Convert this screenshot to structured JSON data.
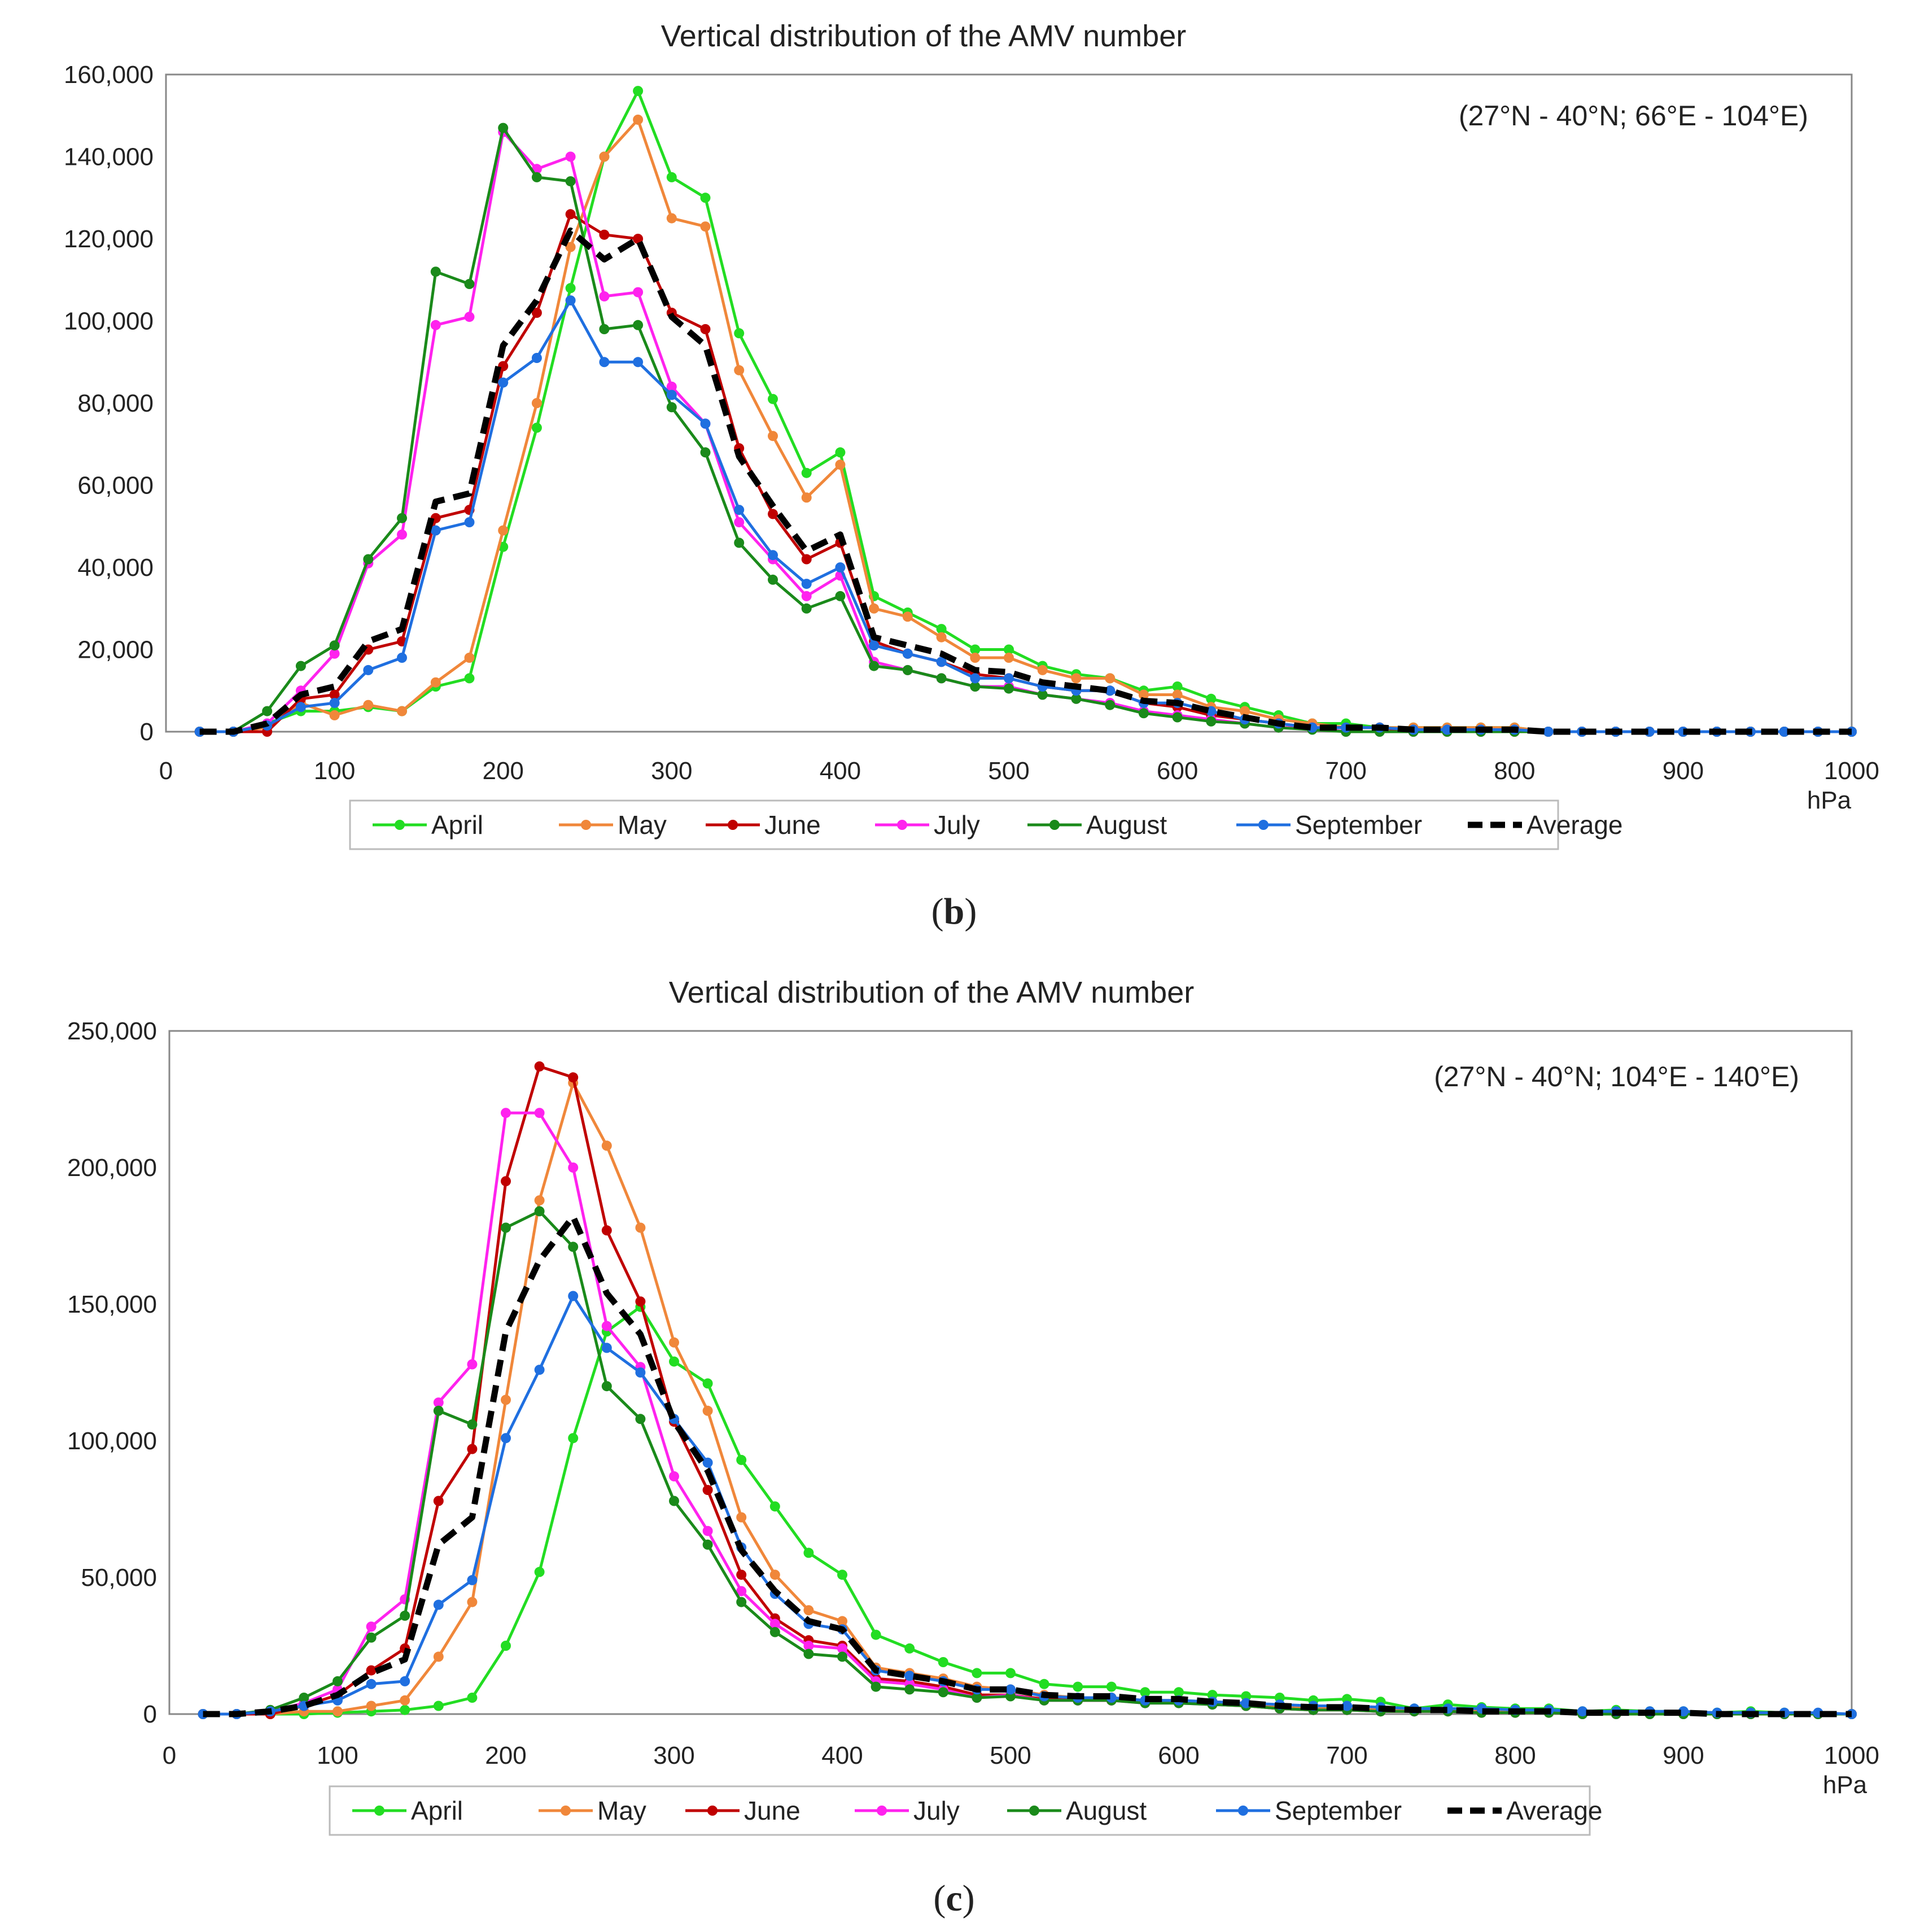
{
  "panels": [
    {
      "title": "Vertical distribution of the AMV number",
      "annotation": "(27°N - 40°N; 66°E - 104°E)",
      "label": "b"
    },
    {
      "title": "Vertical distribution of the AMV number",
      "annotation": "(27°N - 40°N; 104°E - 140°E)",
      "label": "c"
    }
  ],
  "colors": {
    "April": "#22dd22",
    "May": "#f0873a",
    "June": "#c00000",
    "July": "#ff22ee",
    "August": "#1a8a1a",
    "September": "#1f6fe0",
    "Average": "#000000"
  },
  "chart_data": [
    {
      "type": "line",
      "title": "Vertical distribution of the AMV number",
      "xlabel": "hPa",
      "ylabel": "",
      "xlim": [
        0,
        1000
      ],
      "ylim": [
        0,
        160000
      ],
      "x_ticks": [
        "0",
        "100",
        "200",
        "300",
        "400",
        "500",
        "600",
        "700",
        "800",
        "900",
        "1000"
      ],
      "y_ticks": [
        "0",
        "20,000",
        "40,000",
        "60,000",
        "80,000",
        "100,000",
        "120,000",
        "140,000",
        "160,000"
      ],
      "legend": [
        "April",
        "May",
        "June",
        "July",
        "August",
        "September",
        "Average"
      ],
      "legend_position": "bottom",
      "grid": false,
      "x": [
        20,
        40,
        60,
        80,
        100,
        120,
        140,
        160,
        180,
        200,
        220,
        240,
        260,
        280,
        300,
        320,
        340,
        360,
        380,
        400,
        420,
        440,
        460,
        480,
        500,
        520,
        540,
        560,
        580,
        600,
        620,
        640,
        660,
        680,
        700,
        720,
        740,
        760,
        780,
        800,
        820,
        840,
        860,
        880,
        900,
        920,
        940,
        960,
        980,
        1000
      ],
      "series": [
        {
          "name": "April",
          "values": [
            0,
            0,
            2000,
            5000,
            5000,
            6000,
            5000,
            11000,
            13000,
            45000,
            74000,
            108000,
            140000,
            156000,
            135000,
            130000,
            97000,
            81000,
            63000,
            68000,
            33000,
            29000,
            25000,
            20000,
            20000,
            16000,
            14000,
            13000,
            10000,
            11000,
            8000,
            6000,
            4000,
            2000,
            2000,
            1000,
            1000,
            1000,
            1000,
            1000,
            0,
            0,
            0,
            0,
            0,
            0,
            0,
            0,
            0,
            0
          ]
        },
        {
          "name": "May",
          "values": [
            0,
            0,
            1000,
            7000,
            4000,
            6500,
            5000,
            12000,
            18000,
            49000,
            80000,
            118000,
            140000,
            149000,
            125000,
            123000,
            88000,
            72000,
            57000,
            65000,
            30000,
            28000,
            23000,
            18000,
            18000,
            15000,
            13000,
            13000,
            9000,
            9000,
            6000,
            5000,
            3000,
            2000,
            1000,
            1000,
            1000,
            1000,
            1000,
            1000,
            0,
            0,
            0,
            0,
            0,
            0,
            0,
            0,
            0,
            0
          ]
        },
        {
          "name": "June",
          "values": [
            0,
            0,
            0,
            8000,
            9000,
            20000,
            22000,
            52000,
            54000,
            89000,
            102000,
            126000,
            121000,
            120000,
            102000,
            98000,
            69000,
            53000,
            42000,
            46000,
            22000,
            19000,
            17000,
            14000,
            13000,
            11000,
            10000,
            10000,
            7000,
            6000,
            4000,
            3000,
            2000,
            1000,
            1000,
            1000,
            0,
            0,
            0,
            0,
            0,
            0,
            0,
            0,
            0,
            0,
            0,
            0,
            0,
            0
          ]
        },
        {
          "name": "July",
          "values": [
            0,
            0,
            2000,
            10000,
            19000,
            41000,
            48000,
            99000,
            101000,
            146000,
            137000,
            140000,
            106000,
            107000,
            84000,
            75000,
            51000,
            42000,
            33000,
            38000,
            17000,
            15000,
            13000,
            11000,
            11000,
            9000,
            8000,
            7000,
            5000,
            4000,
            3000,
            2000,
            1000,
            1000,
            0,
            0,
            0,
            0,
            0,
            0,
            0,
            0,
            0,
            0,
            0,
            0,
            0,
            0,
            0,
            0
          ]
        },
        {
          "name": "August",
          "values": [
            0,
            0,
            5000,
            16000,
            21000,
            42000,
            52000,
            112000,
            109000,
            147000,
            135000,
            134000,
            98000,
            99000,
            79000,
            68000,
            46000,
            37000,
            30000,
            33000,
            16000,
            15000,
            13000,
            11000,
            10500,
            9000,
            8000,
            6500,
            4500,
            3500,
            2500,
            2000,
            1000,
            500,
            0,
            0,
            0,
            0,
            0,
            0,
            0,
            0,
            0,
            0,
            0,
            0,
            0,
            0,
            0,
            0
          ]
        },
        {
          "name": "September",
          "values": [
            0,
            0,
            1500,
            6000,
            7000,
            15000,
            18000,
            49000,
            51000,
            85000,
            91000,
            105000,
            90000,
            90000,
            82000,
            75000,
            54000,
            43000,
            36000,
            40000,
            21000,
            19000,
            17000,
            13000,
            13000,
            11000,
            10000,
            10000,
            7000,
            7000,
            5000,
            3000,
            2000,
            1000,
            1000,
            1000,
            500,
            500,
            500,
            500,
            0,
            0,
            0,
            0,
            0,
            0,
            0,
            0,
            0,
            0
          ]
        },
        {
          "name": "Average",
          "values": [
            0,
            0,
            2000,
            9000,
            11000,
            22000,
            25000,
            56000,
            58000,
            94000,
            105000,
            122000,
            115000,
            120000,
            101000,
            94000,
            67000,
            55000,
            44000,
            48000,
            23000,
            21000,
            19000,
            15000,
            14500,
            12000,
            11000,
            10000,
            7500,
            7000,
            5000,
            3500,
            2000,
            1000,
            1000,
            1000,
            500,
            500,
            500,
            500,
            0,
            0,
            0,
            0,
            0,
            0,
            0,
            0,
            0,
            0
          ],
          "dashed": true
        }
      ]
    },
    {
      "type": "line",
      "title": "Vertical distribution of the AMV number",
      "xlabel": "hPa",
      "ylabel": "",
      "xlim": [
        0,
        1000
      ],
      "ylim": [
        0,
        250000
      ],
      "x_ticks": [
        "0",
        "100",
        "200",
        "300",
        "400",
        "500",
        "600",
        "700",
        "800",
        "900",
        "1000"
      ],
      "y_ticks": [
        "0",
        "50,000",
        "100,000",
        "150,000",
        "200,000",
        "250,000"
      ],
      "legend": [
        "April",
        "May",
        "June",
        "July",
        "August",
        "September",
        "Average"
      ],
      "legend_position": "bottom",
      "grid": false,
      "x": [
        20,
        40,
        60,
        80,
        100,
        120,
        140,
        160,
        180,
        200,
        220,
        240,
        260,
        280,
        300,
        320,
        340,
        360,
        380,
        400,
        420,
        440,
        460,
        480,
        500,
        520,
        540,
        560,
        580,
        600,
        620,
        640,
        660,
        680,
        700,
        720,
        740,
        760,
        780,
        800,
        820,
        840,
        860,
        880,
        900,
        920,
        940,
        960,
        980,
        1000
      ],
      "series": [
        {
          "name": "April",
          "values": [
            0,
            0,
            0,
            0,
            500,
            1000,
            1500,
            3000,
            6000,
            25000,
            52000,
            101000,
            140000,
            149000,
            129000,
            121000,
            93000,
            76000,
            59000,
            51000,
            29000,
            24000,
            19000,
            15000,
            15000,
            11000,
            10000,
            10000,
            8000,
            8000,
            7000,
            6500,
            6000,
            5000,
            5500,
            4500,
            2000,
            3500,
            2500,
            2000,
            2000,
            1000,
            1500,
            1000,
            1000,
            500,
            1000,
            500,
            0,
            0
          ]
        },
        {
          "name": "May",
          "values": [
            0,
            0,
            0,
            1000,
            1000,
            3000,
            5000,
            21000,
            41000,
            115000,
            188000,
            231000,
            208000,
            178000,
            136000,
            111000,
            72000,
            51000,
            38000,
            34000,
            17000,
            15000,
            13000,
            10000,
            9000,
            7000,
            6000,
            6000,
            5000,
            5000,
            4500,
            4000,
            3000,
            2500,
            2500,
            2000,
            1500,
            1500,
            1500,
            1000,
            1000,
            500,
            500,
            500,
            500,
            0,
            0,
            0,
            0,
            0
          ]
        },
        {
          "name": "June",
          "values": [
            0,
            0,
            0,
            3000,
            7000,
            16000,
            24000,
            78000,
            97000,
            195000,
            237000,
            233000,
            177000,
            151000,
            107000,
            82000,
            51000,
            35000,
            27000,
            25000,
            13000,
            12000,
            10000,
            7000,
            7000,
            5500,
            5000,
            5000,
            4500,
            4500,
            3500,
            3000,
            2000,
            1500,
            1500,
            1000,
            1000,
            1000,
            500,
            500,
            500,
            0,
            0,
            0,
            0,
            0,
            0,
            0,
            0,
            0
          ]
        },
        {
          "name": "July",
          "values": [
            0,
            0,
            1000,
            4000,
            9000,
            32000,
            42000,
            114000,
            128000,
            220000,
            220000,
            200000,
            142000,
            127000,
            87000,
            67000,
            45000,
            33000,
            25000,
            24000,
            12000,
            11000,
            9000,
            6000,
            7000,
            5000,
            5000,
            5000,
            4000,
            4000,
            3500,
            3000,
            2000,
            1500,
            1500,
            1000,
            1000,
            1000,
            500,
            500,
            500,
            0,
            0,
            0,
            0,
            0,
            0,
            0,
            0,
            0
          ]
        },
        {
          "name": "August",
          "values": [
            0,
            0,
            1500,
            6000,
            12000,
            28000,
            36000,
            111000,
            106000,
            178000,
            184000,
            171000,
            120000,
            108000,
            78000,
            62000,
            41000,
            30000,
            22000,
            21000,
            10000,
            9000,
            8000,
            6000,
            6500,
            5000,
            5000,
            5000,
            4000,
            4000,
            3500,
            3000,
            2000,
            1500,
            1500,
            1000,
            1000,
            1000,
            500,
            500,
            500,
            0,
            0,
            0,
            0,
            0,
            0,
            0,
            0,
            0
          ]
        },
        {
          "name": "September",
          "values": [
            0,
            0,
            1000,
            3000,
            5000,
            11000,
            12000,
            40000,
            49000,
            101000,
            126000,
            153000,
            134000,
            125000,
            108000,
            92000,
            61000,
            44000,
            33000,
            31000,
            16000,
            14000,
            12000,
            9000,
            9000,
            6500,
            6000,
            6000,
            5000,
            5000,
            4500,
            4000,
            3500,
            3000,
            3000,
            2500,
            2000,
            2000,
            2000,
            1500,
            1500,
            1000,
            1000,
            1000,
            1000,
            500,
            500,
            500,
            500,
            0
          ]
        },
        {
          "name": "Average",
          "values": [
            0,
            0,
            1000,
            3000,
            7000,
            15000,
            20000,
            62000,
            72000,
            140000,
            166000,
            182000,
            154000,
            139000,
            107000,
            89000,
            60000,
            45000,
            34000,
            31000,
            16000,
            14000,
            12000,
            9000,
            9000,
            7000,
            6500,
            6500,
            5500,
            5500,
            4500,
            4000,
            3000,
            2500,
            2500,
            2000,
            1500,
            1500,
            1000,
            1000,
            1000,
            500,
            500,
            500,
            500,
            0,
            0,
            0,
            0,
            0
          ],
          "dashed": true
        }
      ]
    }
  ]
}
